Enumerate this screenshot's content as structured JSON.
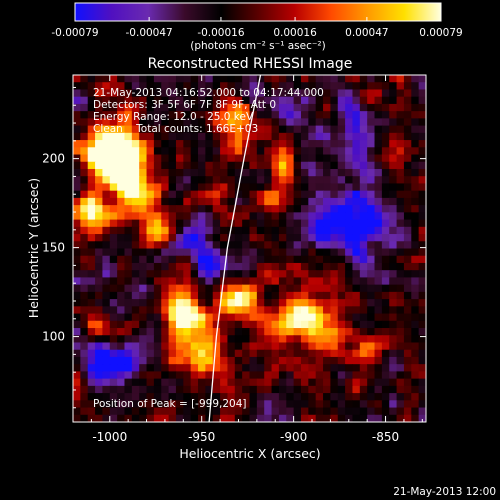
{
  "colors": {
    "background": "#000000",
    "foreground": "#ffffff",
    "colormap": [
      "#1010ff",
      "#5010c0",
      "#6a2ab0",
      "#3a0a2a",
      "#000000",
      "#5a0000",
      "#b80000",
      "#ff4a00",
      "#ff9a00",
      "#ffe000",
      "#ffffe0"
    ],
    "limb_line": "#ffffff"
  },
  "colorbar": {
    "tick_labels": [
      "-0.00079",
      "-0.00047",
      "-0.00016",
      "0.00016",
      "0.00047",
      "0.00079"
    ],
    "tick_values": [
      -0.00079,
      -0.00047,
      -0.00016,
      0.00016,
      0.00047,
      0.00079
    ],
    "range": [
      -0.00079,
      0.00079
    ],
    "unit_label": "(photons cm⁻² s⁻¹ asec⁻²)"
  },
  "chart_data": {
    "type": "heatmap",
    "title": "Reconstructed RHESSI Image",
    "xlabel": "Heliocentric X (arcsec)",
    "ylabel": "Heliocentric Y (arcsec)",
    "xlim": [
      -1020,
      -828
    ],
    "ylim": [
      52,
      247
    ],
    "x_ticks": [
      -1000,
      -950,
      -900,
      -850
    ],
    "x_tick_labels": [
      "-1000",
      "-950",
      "-900",
      "-850"
    ],
    "y_ticks": [
      100,
      150,
      200
    ],
    "y_tick_labels": [
      "100",
      "150",
      "200"
    ],
    "annotations": [
      "21-May-2013 04:16:52.000 to 04:17:44.000",
      "Detectors: 3F 5F 6F 7F 8F 9F, Att 0",
      "Energy Range: 12.0 - 25.0 keV",
      "Clean    Total counts: 1.66E+03"
    ],
    "peak_label": "Position of Peak = [-999,204]",
    "peak": {
      "x": -999,
      "y": 204
    },
    "limb": [
      [
        -946,
        52
      ],
      [
        -942,
        100
      ],
      [
        -936,
        150
      ],
      [
        -927,
        200
      ],
      [
        -918,
        247
      ]
    ],
    "grid": false,
    "value_range": [
      -0.00079,
      0.00079
    ]
  },
  "footer": {
    "timestamp": "21-May-2013 12:00"
  }
}
